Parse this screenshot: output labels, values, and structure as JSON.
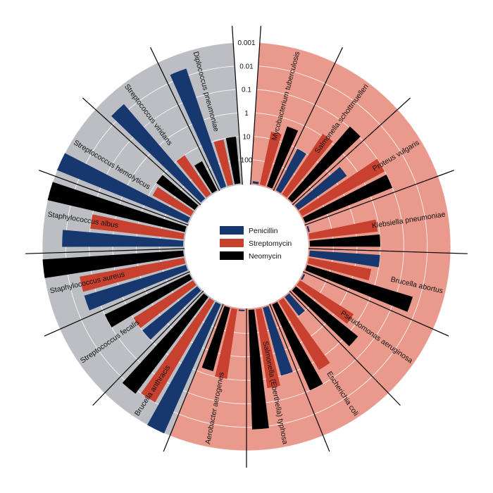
{
  "chart_data": {
    "type": "radial-bar",
    "title": "",
    "scale": "log",
    "radial_axis": {
      "reversed": true,
      "domain": [
        1000,
        0.001
      ],
      "ticks": [
        "0.001",
        "0.01",
        "0.1",
        "1",
        "10",
        "100"
      ]
    },
    "grid": true,
    "legend": "center",
    "series": [
      {
        "name": "Penicillin",
        "color": "#16386e"
      },
      {
        "name": "Streptomycin",
        "color": "#c8402e"
      },
      {
        "name": "Neomycin",
        "color": "#000000"
      }
    ],
    "gram_colors": {
      "positive": "#bcbec4",
      "negative": "#ea9a8c"
    },
    "bacteria": [
      {
        "name": "Aerobacter aerogenes",
        "gram": "negative",
        "penicillin": 870,
        "streptomycin": 1,
        "neomycin": 1.6
      },
      {
        "name": "Brucella abortus",
        "gram": "negative",
        "penicillin": 1,
        "streptomycin": 2,
        "neomycin": 0.02
      },
      {
        "name": "Brucella anthracis",
        "gram": "positive",
        "penicillin": 0.001,
        "streptomycin": 0.01,
        "neomycin": 0.007
      },
      {
        "name": "Diplococcus pneumoniae",
        "gram": "positive",
        "penicillin": 0.005,
        "streptomycin": 11,
        "neomycin": 10
      },
      {
        "name": "Escherichia coli",
        "gram": "negative",
        "penicillin": 100,
        "streptomycin": 0.4,
        "neomycin": 0.1
      },
      {
        "name": "Klebsiella pneumoniae",
        "gram": "negative",
        "penicillin": 850,
        "streptomycin": 1.2,
        "neomycin": 1
      },
      {
        "name": "Mycobacterium tuberculosis",
        "gram": "negative",
        "penicillin": 800,
        "streptomycin": 5,
        "neomycin": 2
      },
      {
        "name": "Proteus vulgaris",
        "gram": "negative",
        "penicillin": 3,
        "streptomycin": 0.1,
        "neomycin": 0.1
      },
      {
        "name": "Pseudomonas aeruginosa",
        "gram": "negative",
        "penicillin": 850,
        "streptomycin": 2,
        "neomycin": 0.4
      },
      {
        "name": "Salmonella (Eberthella) typhosa",
        "gram": "negative",
        "penicillin": 1,
        "streptomycin": 0.4,
        "neomycin": 0.008
      },
      {
        "name": "Salmonella schottmuelleri",
        "gram": "negative",
        "penicillin": 10,
        "streptomycin": 0.8,
        "neomycin": 0.09
      },
      {
        "name": "Staphylococcus albus",
        "gram": "positive",
        "penicillin": 0.007,
        "streptomycin": 0.1,
        "neomycin": 0.001
      },
      {
        "name": "Staphylococcus aureus",
        "gram": "positive",
        "penicillin": 0.03,
        "streptomycin": 0.03,
        "neomycin": 0.001
      },
      {
        "name": "Streptococcus fecalis",
        "gram": "positive",
        "penicillin": 1,
        "streptomycin": 1,
        "neomycin": 0.1
      },
      {
        "name": "Streptococcus hemolyticus",
        "gram": "positive",
        "penicillin": 0.001,
        "streptomycin": 14,
        "neomycin": 10
      },
      {
        "name": "Streptococcus viridans",
        "gram": "positive",
        "penicillin": 0.005,
        "streptomycin": 10,
        "neomycin": 40
      }
    ],
    "order_clockwise_from_top": [
      "Mycobacterium tuberculosis",
      "Salmonella schottmuelleri",
      "Proteus vulgaris",
      "Klebsiella pneumoniae",
      "Brucella abortus",
      "Pseudomonas aeruginosa",
      "Escherichia coli",
      "Salmonella (Eberthella) typhosa",
      "Aerobacter aerogenes",
      "Brucella anthracis",
      "Streptococcus fecalis",
      "Staphylococcus aureus",
      "Staphylococcus albus",
      "Streptococcus hemolyticus",
      "Streptococcus viridans",
      "Diplococcus pneumoniae"
    ]
  }
}
